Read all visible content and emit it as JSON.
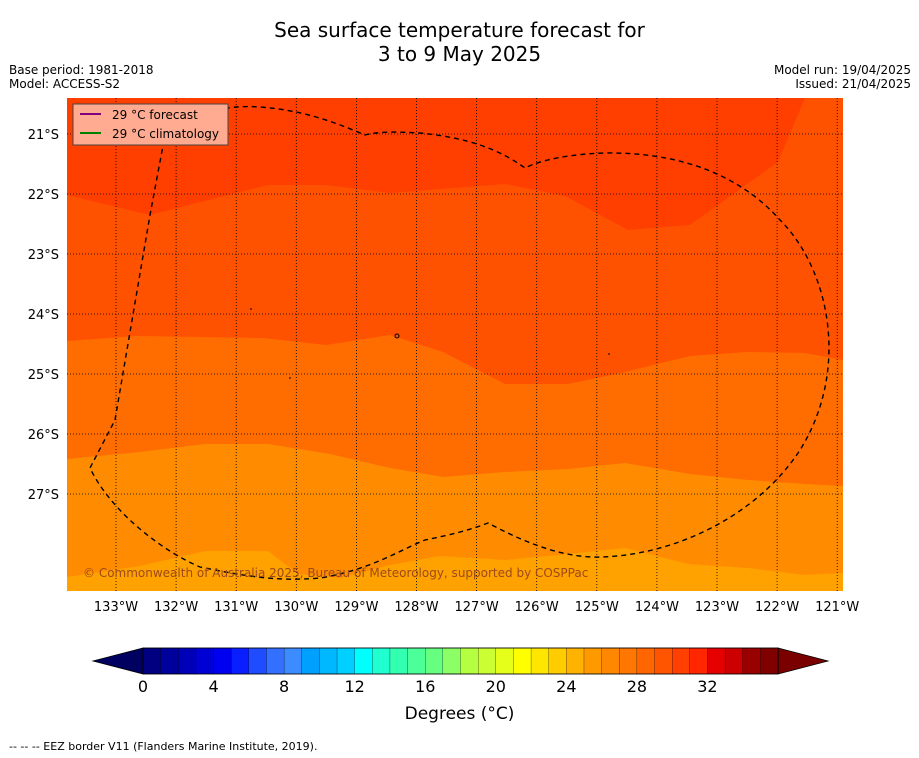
{
  "title": {
    "line1": "Sea surface temperature forecast for",
    "line2": "3 to 9 May 2025"
  },
  "meta_left": {
    "base_period": "Base period: 1981-2018",
    "model": "Model: ACCESS-S2"
  },
  "meta_right": {
    "model_run": "Model run: 19/04/2025",
    "issued": "Issued: 21/04/2025"
  },
  "legend": [
    {
      "label": "29 °C  forecast",
      "color": "#800080"
    },
    {
      "label": "29 °C  climatology",
      "color": "#008000"
    }
  ],
  "copyright": "© Commonwealth of Australia 2025, Bureau of Meteorology, supported by COSPPac",
  "colorbar": {
    "title": "Degrees (°C)",
    "ticks": [
      0,
      4,
      8,
      12,
      16,
      20,
      24,
      28,
      32
    ],
    "min": 0,
    "max": 36,
    "step": 1,
    "colors": [
      "#000080",
      "#00009c",
      "#0000b8",
      "#0000d4",
      "#0000f0",
      "#0a1fff",
      "#1f4cff",
      "#3370ff",
      "#3d8cff",
      "#00a0ff",
      "#00b8ff",
      "#00d0ff",
      "#00ffff",
      "#20ffd0",
      "#33ffb0",
      "#4dff99",
      "#66ff7f",
      "#8cff66",
      "#b3ff40",
      "#ccff33",
      "#e6ff1a",
      "#ffff00",
      "#ffe600",
      "#ffcc00",
      "#ffb300",
      "#ff9900",
      "#ff8800",
      "#ff7700",
      "#ff6600",
      "#ff5500",
      "#ff4000",
      "#ff2600",
      "#e60000",
      "#cc0000",
      "#990000",
      "#800000"
    ],
    "under_color": "#000060",
    "over_color": "#7a0000"
  },
  "footer": "--  --  -- EEZ border V11 (Flanders Marine Institute, 2019).",
  "chart_data": {
    "type": "heatmap",
    "title": "Sea surface temperature forecast for 3 to 9 May 2025",
    "variable": "sea surface temperature",
    "units": "°C",
    "x_ticks": [
      "133°W",
      "132°W",
      "131°W",
      "130°W",
      "129°W",
      "128°W",
      "127°W",
      "126°W",
      "125°W",
      "124°W",
      "123°W",
      "122°W",
      "121°W"
    ],
    "y_ticks": [
      "21°S",
      "22°S",
      "23°S",
      "24°S",
      "25°S",
      "26°S",
      "27°S"
    ],
    "lon_range": [
      -133.8,
      -120.9
    ],
    "lat_range": [
      -28.6,
      -20.4
    ],
    "bands": [
      {
        "value_range_C": "29-30",
        "color": "#ff3f00",
        "description": "north and northeast"
      },
      {
        "value_range_C": "28-29",
        "color": "#ff5200",
        "description": "central-north band"
      },
      {
        "value_range_C": "27-28",
        "color": "#ff6d00",
        "description": "central band"
      },
      {
        "value_range_C": "26-27",
        "color": "#ff8c00",
        "description": "southern band"
      },
      {
        "value_range_C": "25-26",
        "color": "#ffa200",
        "description": "far south"
      }
    ],
    "grid": true,
    "legend_position": "top-left"
  }
}
